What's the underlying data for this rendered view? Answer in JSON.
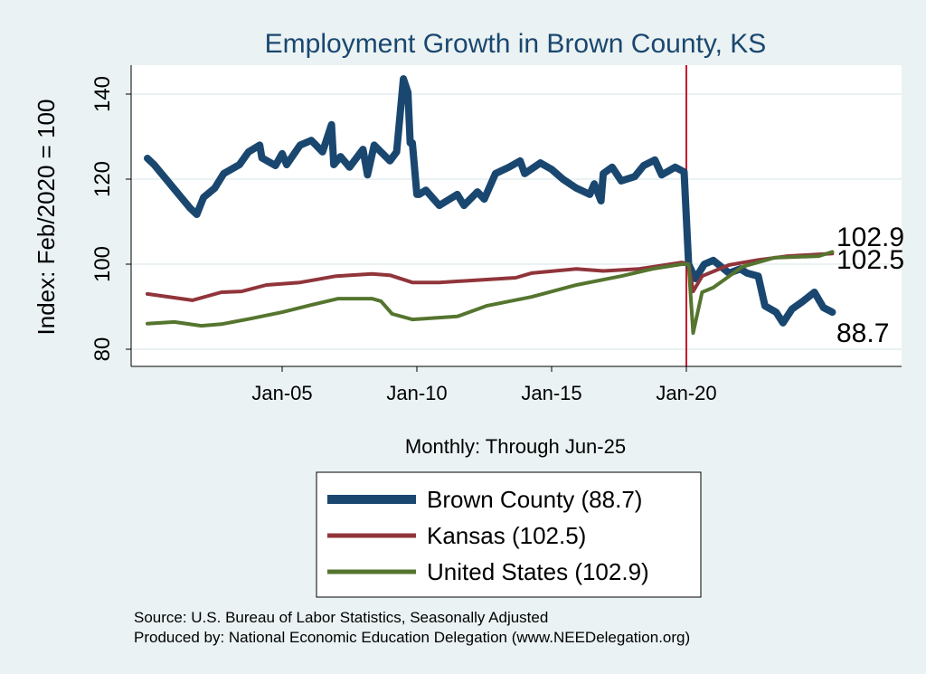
{
  "chart_data": {
    "type": "line",
    "title": "Employment Growth in Brown  County, KS",
    "xlabel": "Monthly: Through Jun-25",
    "ylabel": "Index: Feb/2020 = 100",
    "ylim": [
      76,
      146
    ],
    "xlim": [
      "1999-08",
      "2027-12"
    ],
    "yticks": [
      80,
      100,
      120,
      140
    ],
    "xticks": [
      {
        "label": "Jan-05",
        "date": "2005-01"
      },
      {
        "label": "Jan-10",
        "date": "2010-01"
      },
      {
        "label": "Jan-15",
        "date": "2015-01"
      },
      {
        "label": "Jan-20",
        "date": "2020-01"
      }
    ],
    "grid": true,
    "reference_line": {
      "date": "2020-01",
      "color": "#c8102e"
    },
    "legend_position": "bottom",
    "end_labels": [
      "102.9",
      "102.5",
      "88.7"
    ],
    "series": [
      {
        "name": "Brown  County (88.7)",
        "color": "#1a476f",
        "end_label": "88.7",
        "points": [
          [
            "2000-01",
            124.9
          ],
          [
            "2000-04",
            123.4
          ],
          [
            "2001-02",
            117
          ],
          [
            "2001-08",
            113.2
          ],
          [
            "2001-11",
            111.7
          ],
          [
            "2002-02",
            115.7
          ],
          [
            "2002-07",
            117.9
          ],
          [
            "2002-11",
            121.3
          ],
          [
            "2003-06",
            123.4
          ],
          [
            "2003-10",
            126.4
          ],
          [
            "2004-03",
            128
          ],
          [
            "2004-04",
            125
          ],
          [
            "2004-10",
            123.2
          ],
          [
            "2005-01",
            126
          ],
          [
            "2005-03",
            123.4
          ],
          [
            "2005-09",
            128
          ],
          [
            "2006-02",
            129.1
          ],
          [
            "2006-07",
            126.4
          ],
          [
            "2006-11",
            132.8
          ],
          [
            "2006-12",
            123.4
          ],
          [
            "2007-03",
            125.3
          ],
          [
            "2007-07",
            122.8
          ],
          [
            "2008-01",
            127
          ],
          [
            "2008-03",
            121
          ],
          [
            "2008-06",
            128
          ],
          [
            "2009-01",
            124.3
          ],
          [
            "2009-04",
            126.4
          ],
          [
            "2009-07",
            143.6
          ],
          [
            "2009-09",
            140.4
          ],
          [
            "2009-10",
            128.5
          ],
          [
            "2009-11",
            128.5
          ],
          [
            "2010-01",
            116.4
          ],
          [
            "2010-02",
            116.4
          ],
          [
            "2010-05",
            117.4
          ],
          [
            "2010-11",
            113.8
          ],
          [
            "2011-07",
            116.4
          ],
          [
            "2011-10",
            113.8
          ],
          [
            "2012-04",
            117
          ],
          [
            "2012-07",
            115.3
          ],
          [
            "2012-12",
            121.3
          ],
          [
            "2013-06",
            122.8
          ],
          [
            "2013-11",
            124.3
          ],
          [
            "2014-01",
            121.3
          ],
          [
            "2014-08",
            123.8
          ],
          [
            "2015-01",
            122.3
          ],
          [
            "2015-06",
            120
          ],
          [
            "2015-12",
            117.9
          ],
          [
            "2016-06",
            116.4
          ],
          [
            "2016-08",
            118.9
          ],
          [
            "2016-11",
            114.9
          ],
          [
            "2016-12",
            121.3
          ],
          [
            "2017-04",
            122.8
          ],
          [
            "2017-08",
            119.6
          ],
          [
            "2018-02",
            120.6
          ],
          [
            "2018-06",
            123.2
          ],
          [
            "2018-11",
            124.5
          ],
          [
            "2019-02",
            121
          ],
          [
            "2019-08",
            122.8
          ],
          [
            "2019-12",
            121.7
          ],
          [
            "2020-02",
            100
          ],
          [
            "2020-05",
            96.6
          ],
          [
            "2020-09",
            100
          ],
          [
            "2021-01",
            100.9
          ],
          [
            "2021-08",
            97.9
          ],
          [
            "2022-01",
            98.9
          ],
          [
            "2022-04",
            97.9
          ],
          [
            "2022-09",
            97.2
          ],
          [
            "2022-12",
            90.2
          ],
          [
            "2023-05",
            88.7
          ],
          [
            "2023-08",
            86.2
          ],
          [
            "2023-12",
            89.4
          ],
          [
            "2024-05",
            91.3
          ],
          [
            "2024-10",
            93.4
          ],
          [
            "2025-02",
            89.8
          ],
          [
            "2025-06",
            88.7
          ]
        ]
      },
      {
        "name": "Kansas (102.5)",
        "color": "#90353b",
        "end_label": "102.5",
        "points": [
          [
            "2000-01",
            93.0
          ],
          [
            "2001-09",
            91.5
          ],
          [
            "2002-10",
            93.4
          ],
          [
            "2003-07",
            93.6
          ],
          [
            "2004-06",
            95.1
          ],
          [
            "2005-09",
            95.7
          ],
          [
            "2007-01",
            97.2
          ],
          [
            "2008-05",
            97.7
          ],
          [
            "2009-01",
            97.4
          ],
          [
            "2009-11",
            95.7
          ],
          [
            "2010-11",
            95.7
          ],
          [
            "2013-09",
            96.8
          ],
          [
            "2014-04",
            97.9
          ],
          [
            "2015-12",
            98.9
          ],
          [
            "2016-12",
            98.4
          ],
          [
            "2018-04",
            98.9
          ],
          [
            "2019-11",
            100.4
          ],
          [
            "2020-02",
            100
          ],
          [
            "2020-04",
            93.6
          ],
          [
            "2020-08",
            97.2
          ],
          [
            "2021-08",
            99.8
          ],
          [
            "2022-09",
            101
          ],
          [
            "2023-10",
            101.9
          ],
          [
            "2025-06",
            102.5
          ]
        ]
      },
      {
        "name": "United States (102.9)",
        "color": "#55752f",
        "end_label": "102.9",
        "points": [
          [
            "2000-01",
            86
          ],
          [
            "2001-01",
            86.4
          ],
          [
            "2002-01",
            85.5
          ],
          [
            "2002-10",
            85.9
          ],
          [
            "2003-11",
            87.2
          ],
          [
            "2005-01",
            88.7
          ],
          [
            "2006-02",
            90.4
          ],
          [
            "2007-02",
            91.9
          ],
          [
            "2008-05",
            91.9
          ],
          [
            "2008-09",
            91.3
          ],
          [
            "2009-02",
            88.3
          ],
          [
            "2009-11",
            87
          ],
          [
            "2011-07",
            87.7
          ],
          [
            "2012-08",
            90.2
          ],
          [
            "2014-04",
            92.3
          ],
          [
            "2015-12",
            95.1
          ],
          [
            "2017-08",
            97.2
          ],
          [
            "2018-10",
            98.9
          ],
          [
            "2019-11",
            100
          ],
          [
            "2020-02",
            100
          ],
          [
            "2020-04",
            83.8
          ],
          [
            "2020-08",
            93.4
          ],
          [
            "2021-01",
            94.5
          ],
          [
            "2022-02",
            99.4
          ],
          [
            "2023-04",
            101.5
          ],
          [
            "2024-12",
            101.9
          ],
          [
            "2025-06",
            102.9
          ]
        ]
      }
    ]
  },
  "footer": {
    "source": "Source: U.S. Bureau of Labor Statistics, Seasonally Adjusted",
    "produced_by": "Produced by: National Economic Education Delegation (www.NEEDelegation.org)"
  }
}
